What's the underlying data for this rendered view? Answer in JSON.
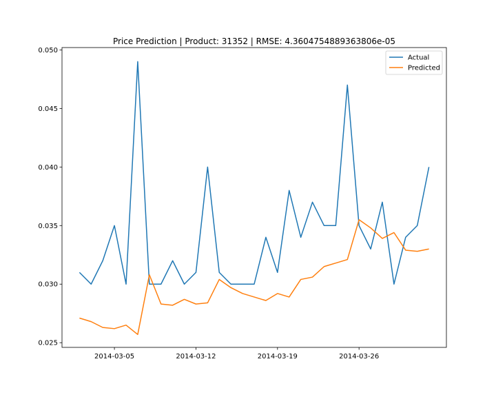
{
  "chart_data": {
    "type": "line",
    "title": "Price Prediction | Product: 31352 | RMSE: 4.3604754889363806e-05",
    "xlabel": "",
    "ylabel": "",
    "x": [
      "2014-03-02",
      "2014-03-03",
      "2014-03-04",
      "2014-03-05",
      "2014-03-06",
      "2014-03-07",
      "2014-03-08",
      "2014-03-09",
      "2014-03-10",
      "2014-03-11",
      "2014-03-12",
      "2014-03-13",
      "2014-03-14",
      "2014-03-15",
      "2014-03-16",
      "2014-03-17",
      "2014-03-18",
      "2014-03-19",
      "2014-03-20",
      "2014-03-21",
      "2014-03-22",
      "2014-03-23",
      "2014-03-24",
      "2014-03-25",
      "2014-03-26",
      "2014-03-27",
      "2014-03-28",
      "2014-03-29",
      "2014-03-30",
      "2014-03-31",
      "2014-04-01"
    ],
    "series": [
      {
        "name": "Actual",
        "color": "#1f77b4",
        "values": [
          0.031,
          0.03,
          0.032,
          0.035,
          0.03,
          0.049,
          0.03,
          0.03,
          0.032,
          0.03,
          0.031,
          0.04,
          0.031,
          0.03,
          0.03,
          0.03,
          0.034,
          0.031,
          0.038,
          0.034,
          0.037,
          0.035,
          0.035,
          0.047,
          0.035,
          0.033,
          0.037,
          0.03,
          0.034,
          0.035,
          0.04
        ]
      },
      {
        "name": "Predicted",
        "color": "#ff7f0e",
        "values": [
          0.0271,
          0.0268,
          0.0263,
          0.0262,
          0.0265,
          0.0257,
          0.0308,
          0.0283,
          0.0282,
          0.0287,
          0.0283,
          0.0284,
          0.0304,
          0.0297,
          0.0292,
          0.0289,
          0.0286,
          0.0292,
          0.0289,
          0.0304,
          0.0306,
          0.0315,
          0.0318,
          0.0321,
          0.0355,
          0.0348,
          0.0339,
          0.0344,
          0.0329,
          0.0328,
          0.033
        ]
      }
    ],
    "xticks": [
      {
        "value": "2014-03-05",
        "label": "2014-03-05"
      },
      {
        "value": "2014-03-12",
        "label": "2014-03-12"
      },
      {
        "value": "2014-03-19",
        "label": "2014-03-19"
      },
      {
        "value": "2014-03-26",
        "label": "2014-03-26"
      }
    ],
    "yticks": [
      {
        "value": 0.025,
        "label": "0.025"
      },
      {
        "value": 0.03,
        "label": "0.030"
      },
      {
        "value": 0.035,
        "label": "0.035"
      },
      {
        "value": 0.04,
        "label": "0.040"
      },
      {
        "value": 0.045,
        "label": "0.045"
      },
      {
        "value": 0.05,
        "label": "0.050"
      }
    ],
    "xlim": [
      "2014-02-28 12:00",
      "2014-04-02 12:00"
    ],
    "ylim": [
      0.0246,
      0.0502
    ],
    "legend": "top-right",
    "grid": false
  }
}
